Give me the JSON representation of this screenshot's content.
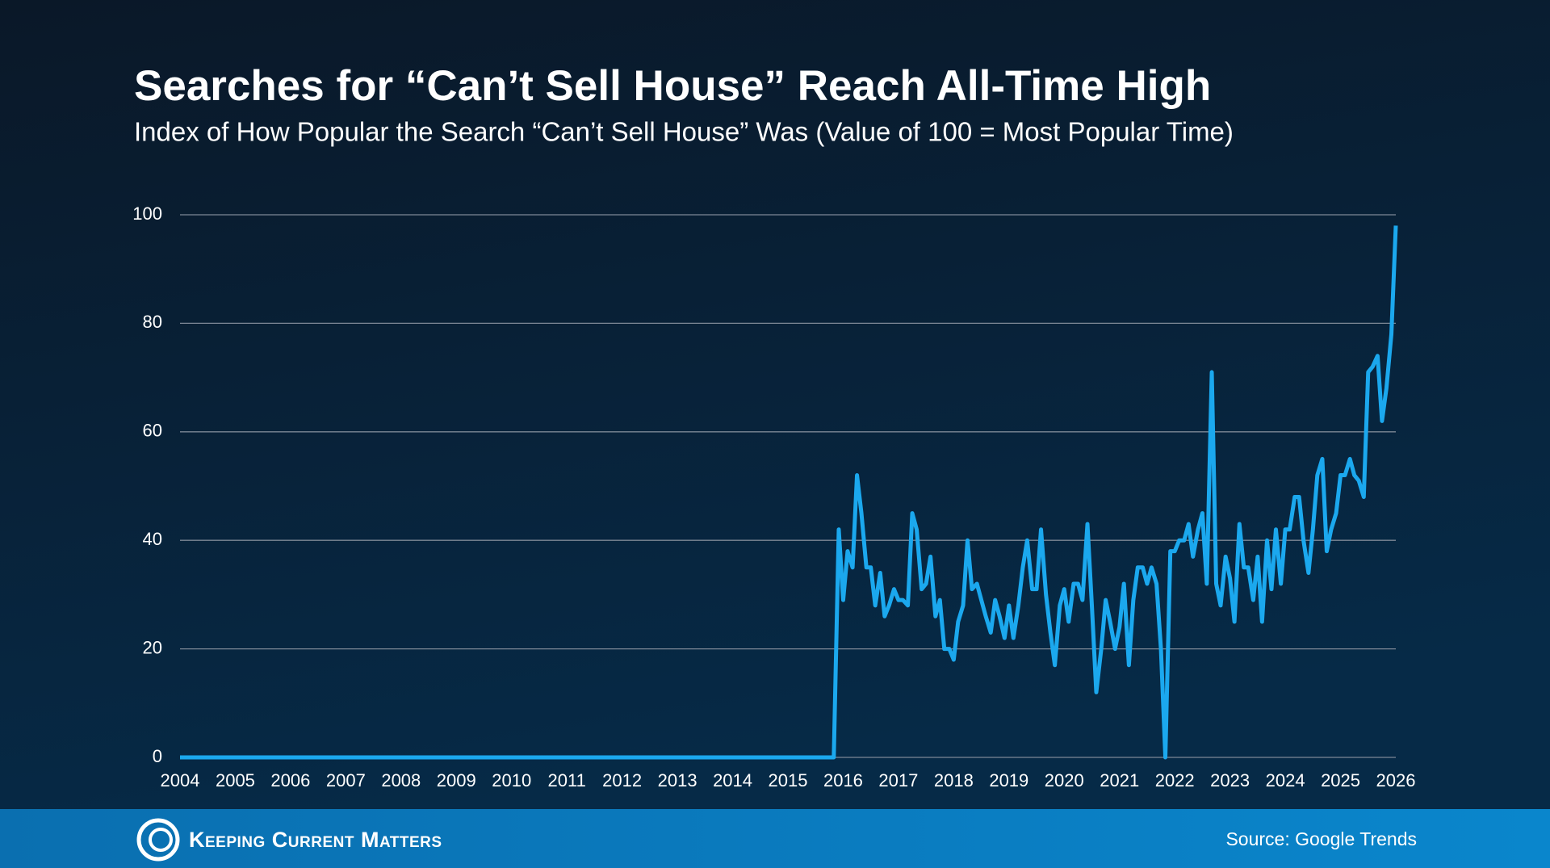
{
  "chart_data": {
    "type": "line",
    "title": "Searches for “Can’t Sell House” Reach All-Time High",
    "subtitle": "Index of How Popular the Search “Can’t Sell House” Was (Value of 100 = Most Popular Time)",
    "x": [
      2004,
      2015.83,
      2015.92,
      2016.0,
      2016.08,
      2016.17,
      2016.25,
      2016.33,
      2016.42,
      2016.5,
      2016.58,
      2016.67,
      2016.75,
      2016.83,
      2016.92,
      2017.0,
      2017.08,
      2017.17,
      2017.25,
      2017.33,
      2017.42,
      2017.5,
      2017.58,
      2017.67,
      2017.75,
      2017.83,
      2017.92,
      2018.0,
      2018.08,
      2018.17,
      2018.25,
      2018.33,
      2018.42,
      2018.5,
      2018.58,
      2018.67,
      2018.75,
      2018.83,
      2018.92,
      2019.0,
      2019.08,
      2019.17,
      2019.25,
      2019.33,
      2019.42,
      2019.5,
      2019.58,
      2019.67,
      2019.75,
      2019.83,
      2019.92,
      2020.0,
      2020.08,
      2020.17,
      2020.25,
      2020.33,
      2020.42,
      2020.5,
      2020.58,
      2020.67,
      2020.75,
      2020.83,
      2020.92,
      2021.0,
      2021.08,
      2021.17,
      2021.25,
      2021.33,
      2021.42,
      2021.5,
      2021.58,
      2021.67,
      2021.75,
      2021.83,
      2021.92,
      2022.0,
      2022.08,
      2022.17,
      2022.25,
      2022.33,
      2022.42,
      2022.5,
      2022.58,
      2022.67,
      2022.75,
      2022.83,
      2022.92,
      2023.0,
      2023.08,
      2023.17,
      2023.25,
      2023.33,
      2023.42,
      2023.5,
      2023.58,
      2023.67,
      2023.75,
      2023.83,
      2023.92,
      2024.0,
      2024.08,
      2024.17,
      2024.25,
      2024.33,
      2024.42,
      2024.5,
      2024.58,
      2024.67,
      2024.75,
      2024.83,
      2024.92,
      2025.0,
      2025.08,
      2025.17,
      2025.25,
      2025.33,
      2025.42,
      2025.5,
      2025.58,
      2025.67,
      2025.75,
      2025.83,
      2025.92,
      2026.0
    ],
    "series": [
      {
        "color": "#1ba8ee",
        "values": [
          0,
          0,
          42,
          29,
          38,
          35,
          52,
          45,
          35,
          35,
          28,
          34,
          26,
          28,
          31,
          29,
          29,
          28,
          45,
          42,
          31,
          32,
          37,
          26,
          29,
          20,
          20,
          18,
          25,
          28,
          40,
          31,
          32,
          29,
          26,
          23,
          29,
          26,
          22,
          28,
          22,
          28,
          35,
          40,
          31,
          31,
          42,
          30,
          23,
          17,
          28,
          31,
          25,
          32,
          32,
          29,
          43,
          28,
          12,
          20,
          29,
          25,
          20,
          24,
          32,
          17,
          29,
          35,
          35,
          32,
          35,
          32,
          20,
          0,
          38,
          38,
          40,
          40,
          43,
          37,
          42,
          45,
          32,
          71,
          32,
          28,
          37,
          33,
          25,
          43,
          35,
          35,
          29,
          37,
          25,
          40,
          31,
          42,
          32,
          42,
          42,
          48,
          48,
          40,
          34,
          42,
          52,
          55,
          38,
          42,
          45,
          52,
          52,
          55,
          52,
          51,
          48,
          71,
          72,
          74,
          62,
          68,
          78,
          98
        ]
      }
    ],
    "xlim": [
      2004,
      2026
    ],
    "xticks": [
      2004,
      2005,
      2006,
      2007,
      2008,
      2009,
      2010,
      2011,
      2012,
      2013,
      2014,
      2015,
      2016,
      2017,
      2018,
      2019,
      2020,
      2021,
      2022,
      2023,
      2024,
      2025,
      2026
    ],
    "ylim": [
      0,
      100
    ],
    "yticks": [
      0,
      20,
      40,
      60,
      80,
      100
    ],
    "grid": true
  },
  "footer": {
    "brand": "Keeping Current Matters",
    "source": "Source: Google Trends"
  }
}
